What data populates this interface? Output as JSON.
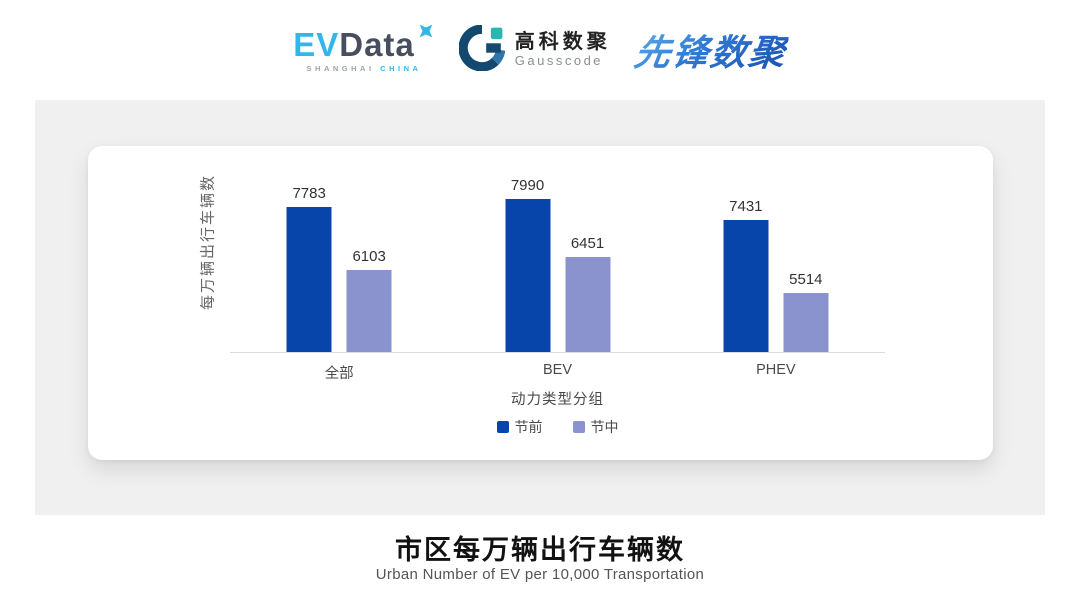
{
  "header": {
    "evdata_logo": {
      "ev": "EV",
      "data": "Data",
      "sub_left": "SHANGHAI",
      "sub_right": "CHINA"
    },
    "gausscode_logo": {
      "name_cn": "高科数聚",
      "name_en": "Gausscode"
    },
    "xianfeng_logo": {
      "text": "先锋数聚"
    }
  },
  "chart_data": {
    "type": "bar",
    "title": "市区每万辆出行车辆数",
    "subtitle": "Urban Number of EV per 10,000 Transportation",
    "categories": [
      "全部",
      "BEV",
      "PHEV"
    ],
    "series": [
      {
        "name": "节前",
        "color": "#0845ab",
        "values": [
          7783,
          7990,
          7431
        ]
      },
      {
        "name": "节中",
        "color": "#8a93ce",
        "values": [
          6103,
          6451,
          5514
        ]
      }
    ],
    "xlabel": "动力类型分组",
    "ylabel": "每万辆出行车辆数",
    "ylim": [
      3944,
      8500
    ],
    "value_labels": true,
    "legend_position": "bottom",
    "grid": false
  },
  "footer": {
    "title": "市区每万辆出行车辆数",
    "subtitle": "Urban Number of EV per 10,000 Transportation"
  },
  "colors": {
    "pre_holiday_bar": "#0845ab",
    "mid_holiday_bar": "#8a93ce",
    "evdata_blue": "#35b6e9",
    "evdata_dark": "#474f5e",
    "gauss_navy": "#13496e",
    "gauss_teal": "#29b7b2",
    "axis_line": "#dcdcdc",
    "panel_bg": "#f0f0f1"
  }
}
